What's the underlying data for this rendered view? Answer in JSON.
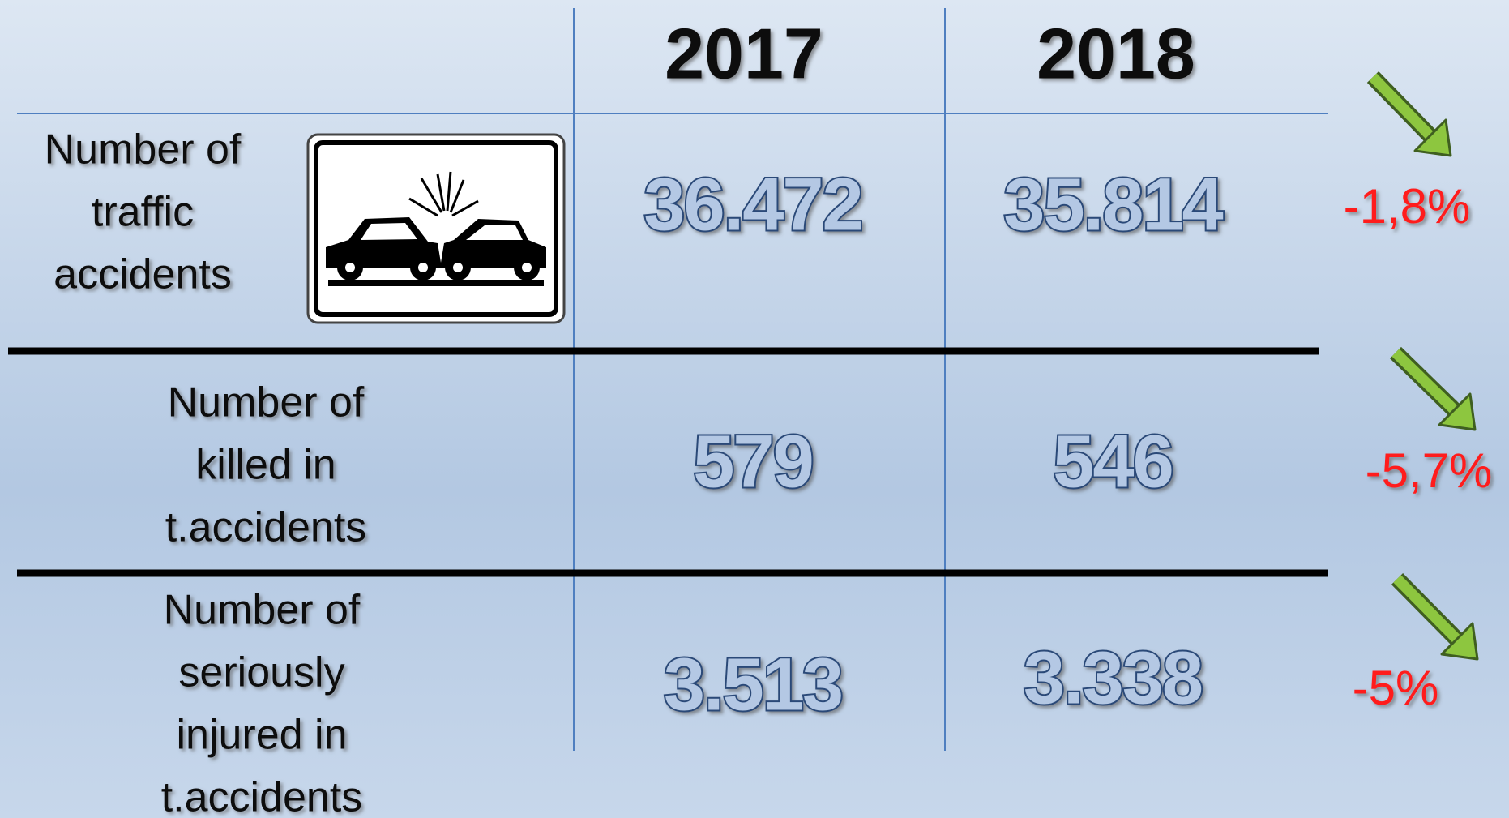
{
  "table": {
    "columns": [
      "2017",
      "2018"
    ],
    "rows": [
      {
        "label": [
          "Number of",
          "traffic",
          "accidents"
        ],
        "values": [
          "36.472",
          "35.814"
        ],
        "change": "-1,8%"
      },
      {
        "label": [
          "Number of",
          "killed in",
          "t.accidents"
        ],
        "values": [
          "579",
          "546"
        ],
        "change": "-5,7%"
      },
      {
        "label": [
          "Number of",
          "seriously",
          "injured in",
          "t.accidents"
        ],
        "values": [
          "3.513",
          "3.338"
        ],
        "change": "-5%"
      }
    ]
  }
}
